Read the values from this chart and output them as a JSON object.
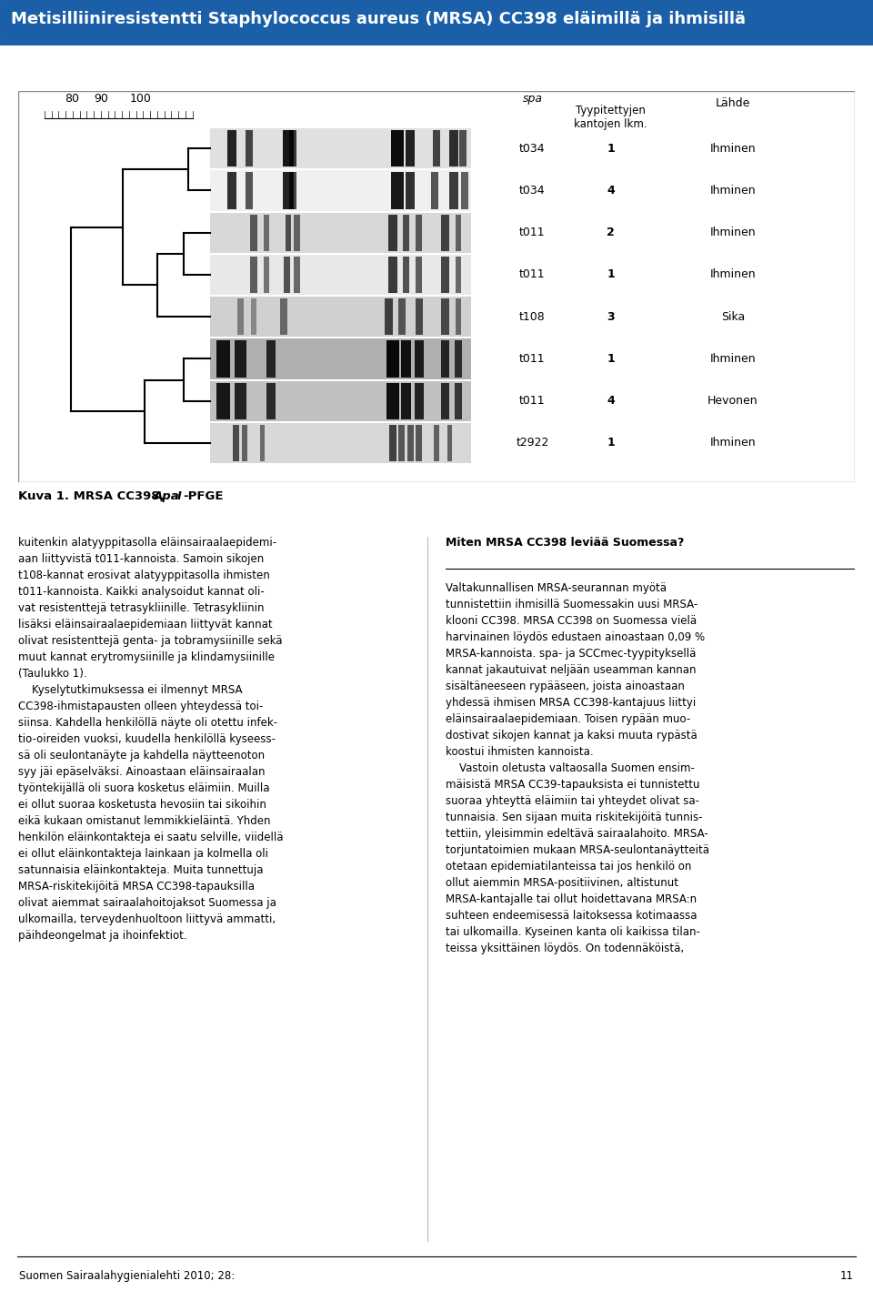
{
  "title": "Metisilliiniresistentti Staphylococcus aureus (MRSA) CC398 eläimillä ja ihmisillä",
  "title_color": "#ffffff",
  "title_bg_color": "#1a5fa8",
  "figure_bg": "#ffffff",
  "scale_labels": [
    "80",
    "90",
    "100"
  ],
  "rows": [
    {
      "spa": "t034",
      "count": "1",
      "source": "Ihminen"
    },
    {
      "spa": "t034",
      "count": "4",
      "source": "Ihminen"
    },
    {
      "spa": "t011",
      "count": "2",
      "source": "Ihminen"
    },
    {
      "spa": "t011",
      "count": "1",
      "source": "Ihminen"
    },
    {
      "spa": "t108",
      "count": "3",
      "source": "Sika"
    },
    {
      "spa": "t011",
      "count": "1",
      "source": "Ihminen"
    },
    {
      "spa": "t011",
      "count": "4",
      "source": "Hevonen"
    },
    {
      "spa": "t2922",
      "count": "1",
      "source": "Ihminen"
    }
  ],
  "left_col_text": "kuitenkin alatyyppitasolla eläinsairaalaepidemi-\naan liittyvistä t011-kannoista. Samoin sikojen\nt108-kannat erosivat alatyyppitasolla ihmisten\nt011-kannoista. Kaikki analysoidut kannat oli-\nvat resistenttejä tetrasykliinille. Tetrasykliinin\nlisäksi eläinsairaalaepidemiaan liittyvät kannat\nolivat resistenttejä genta- ja tobramysiinille sekä\nmuut kannat erytromysiinille ja klindamysiinille\n(Taulukko 1).\n    Kyselytutkimuksessa ei ilmennyt MRSA\nCC398-ihmistapausten olleen yhteydessä toi-\nsiinsa. Kahdella henkilöllä näyte oli otettu infek-\ntio-oireiden vuoksi, kuudella henkilöllä kyseess-\nsä oli seulontanäyte ja kahdella näytteenoton\nsyy jäi epäselväksi. Ainoastaan eläinsairaalan\ntyöntekijällä oli suora kosketus eläimiin. Muilla\nei ollut suoraa kosketusta hevosiin tai sikoihin\neikä kukaan omistanut lemmikkieläintä. Yhden\nhenkilön eläinkontakteja ei saatu selville, viidellä\nei ollut eläinkontakteja lainkaan ja kolmella oli\nsatunnaisia eläinkontakteja. Muita tunnettuja\nMRSA-riskitekijöitä MRSA CC398-tapauksilla\nolivat aiemmat sairaalahoitojaksot Suomessa ja\nulkomailla, terveydenhuoltoon liittyvä ammatti,\npäihdeongelmat ja ihoinfektiot.",
  "right_col_heading": "Miten MRSA CC398 leviää Suomessa?",
  "right_col_text": "Valtakunnallisen MRSA-seurannan myötä\ntunnistettiin ihmisillä Suomessakin uusi MRSA-\nklooni CC398. MRSA CC398 on Suomessa vielä\nharvinainen löydös edustaen ainoastaan 0,09 %\nMRSA-kannoista. spa- ja SCCmec-tyypityksellä\nkannat jakautuivat neljään useamman kannan\nsisältäneeseen rypääseen, joista ainoastaan\nyhdessä ihmisen MRSA CC398-kantajuus liittyi\neläinsairaalaepidemiaan. Toisen rypään muo-\ndostivat sikojen kannat ja kaksi muuta rypästä\nkoostui ihmisten kannoista.\n    Vastoin oletusta valtaosalla Suomen ensim-\nmäisistä MRSA CC39-tapauksista ei tunnistettu\nsuoraa yhteyttä eläimiin tai yhteydet olivat sa-\ntunnaisia. Sen sijaan muita riskitekijöitä tunnis-\ntettiin, yleisimmin edeltävä sairaalahoito. MRSA-\ntorjuntatoimien mukaan MRSA-seulontanäytteitä\notetaan epidemiatilanteissa tai jos henkilö on\nollut aiemmin MRSA-positiivinen, altistunut\nMRSA-kantajalle tai ollut hoidettavana MRSA:n\nsuhteen endeemisessä laitoksessa kotimaassa\ntai ulkomailla. Kyseinen kanta oli kaikissa tilan-\nteissa yksittäinen löydös. On todennäköistä,",
  "footer_text": "Suomen Sairaalahygienialehti 2010; 28:",
  "footer_page": "11"
}
